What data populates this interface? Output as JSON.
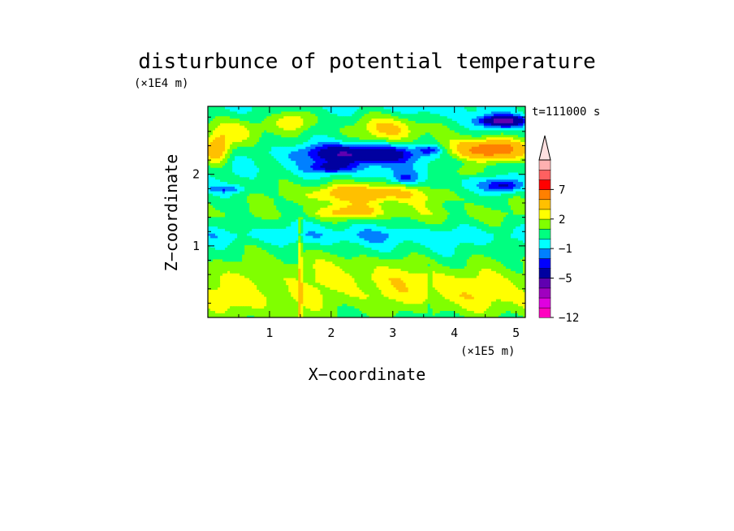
{
  "chart_data": {
    "type": "heatmap",
    "title": "disturbunce of potential temperature",
    "xlabel": "X−coordinate",
    "ylabel": "Z−coordinate",
    "x_unit": "(×1E5 m)",
    "y_unit": "(×1E4 m)",
    "time_label": "t=111000 s",
    "xlim": [
      0,
      5.15
    ],
    "ylim": [
      0,
      2.95
    ],
    "xticks": [
      {
        "value": 1,
        "label": "1"
      },
      {
        "value": 2,
        "label": "2"
      },
      {
        "value": 3,
        "label": "3"
      },
      {
        "value": 4,
        "label": "4"
      },
      {
        "value": 5,
        "label": "5"
      }
    ],
    "yticks": [
      {
        "value": 1,
        "label": "1"
      },
      {
        "value": 2,
        "label": "2"
      }
    ],
    "colorbar": {
      "levels": [
        -12,
        -11,
        -9,
        -7,
        -5,
        -3,
        -2,
        -1,
        0,
        1,
        2,
        3,
        5,
        7,
        9,
        11
      ],
      "colors": [
        "#ff00c0",
        "#e000e0",
        "#a000c0",
        "#6000b0",
        "#0000a0",
        "#0000ff",
        "#0080ff",
        "#00ffff",
        "#00ff80",
        "#80ff00",
        "#ffff00",
        "#ffc000",
        "#ff8000",
        "#ff0000",
        "#ff6060",
        "#ffb0b0"
      ],
      "extend_color": "#ffe0e0",
      "tick_labels": [
        {
          "value": -12,
          "label": "−12"
        },
        {
          "value": -5,
          "label": "−5"
        },
        {
          "value": -1,
          "label": "−1"
        },
        {
          "value": 2,
          "label": "2"
        },
        {
          "value": 7,
          "label": "7"
        }
      ]
    },
    "features": [
      {
        "x": 2.5,
        "z": 2.3,
        "sx": 0.9,
        "sz": 0.13,
        "amp": -5.5
      },
      {
        "x": 2.0,
        "z": 2.1,
        "sx": 0.35,
        "sz": 0.08,
        "amp": -3.0
      },
      {
        "x": 4.8,
        "z": 2.75,
        "sx": 0.4,
        "sz": 0.08,
        "amp": -6.0
      },
      {
        "x": 3.6,
        "z": 2.35,
        "sx": 0.2,
        "sz": 0.06,
        "amp": -2.5
      },
      {
        "x": 4.6,
        "z": 2.35,
        "sx": 0.55,
        "sz": 0.15,
        "amp": 6.5
      },
      {
        "x": 2.6,
        "z": 1.75,
        "sx": 0.95,
        "sz": 0.13,
        "amp": 3.5
      },
      {
        "x": 0.15,
        "z": 2.35,
        "sx": 0.2,
        "sz": 0.2,
        "amp": 3.5
      },
      {
        "x": 0.5,
        "z": 2.6,
        "sx": 0.45,
        "sz": 0.2,
        "amp": 2.5
      },
      {
        "x": 2.1,
        "z": 1.45,
        "sx": 0.6,
        "sz": 0.1,
        "amp": 1.0
      },
      {
        "x": 2.4,
        "z": 1.5,
        "sx": 0.4,
        "sz": 0.08,
        "amp": 2.0
      },
      {
        "x": 4.8,
        "z": 1.85,
        "sx": 0.3,
        "sz": 0.1,
        "amp": -4.0
      },
      {
        "x": 0.3,
        "z": 1.8,
        "sx": 0.3,
        "sz": 0.05,
        "amp": -2.0
      },
      {
        "x": 3.0,
        "z": 2.65,
        "sx": 0.5,
        "sz": 0.2,
        "amp": 2.5
      },
      {
        "x": 1.4,
        "z": 2.75,
        "sx": 0.3,
        "sz": 0.15,
        "amp": 2.0
      },
      {
        "x": 4.2,
        "z": 2.05,
        "sx": 0.3,
        "sz": 0.1,
        "amp": 2.0
      },
      {
        "x": 3.2,
        "z": 1.95,
        "sx": 0.2,
        "sz": 0.08,
        "amp": -2.0
      }
    ],
    "vertical_profile": [
      {
        "z": 0.0,
        "v": 1.0
      },
      {
        "z": 0.3,
        "v": 2.3
      },
      {
        "z": 0.55,
        "v": 2.2
      },
      {
        "z": 0.8,
        "v": 1.2
      },
      {
        "z": 1.0,
        "v": 0.2
      },
      {
        "z": 1.15,
        "v": -0.8
      },
      {
        "z": 1.3,
        "v": 0.3
      },
      {
        "z": 1.45,
        "v": 1.2
      },
      {
        "z": 1.65,
        "v": 1.0
      },
      {
        "z": 1.85,
        "v": 0.3
      },
      {
        "z": 2.1,
        "v": -0.3
      },
      {
        "z": 2.4,
        "v": 0.5
      },
      {
        "z": 2.7,
        "v": 0.5
      },
      {
        "z": 2.95,
        "v": -0.3
      }
    ],
    "spikes": [
      {
        "x": 1.5,
        "z_top": 1.4,
        "amp": 2.5
      },
      {
        "x": 3.6,
        "z_top": 0.75,
        "amp": -1.0
      }
    ]
  }
}
